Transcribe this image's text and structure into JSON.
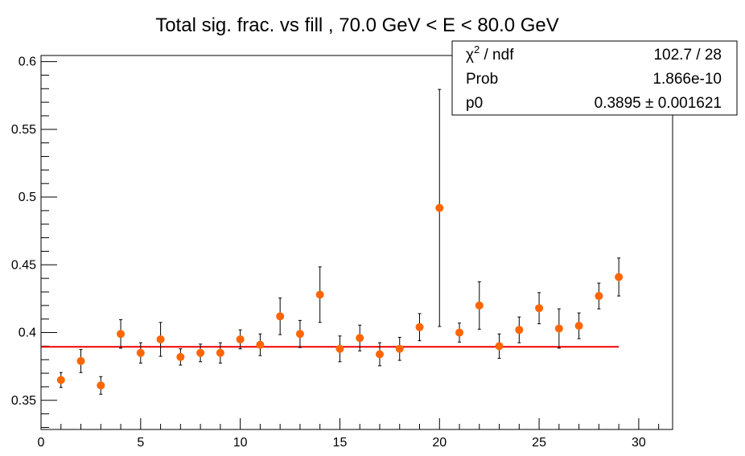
{
  "chart_data": {
    "type": "scatter",
    "title": "Total sig. frac. vs fill , 70.0 GeV < E < 80.0 GeV",
    "xlabel": "",
    "ylabel": "",
    "xlim": [
      0,
      31.7
    ],
    "ylim": [
      0.3285,
      0.6045
    ],
    "x_ticks": [
      0,
      5,
      10,
      15,
      20,
      25,
      30
    ],
    "x_tick_labels": [
      "0",
      "5",
      "10",
      "15",
      "20",
      "25",
      "30"
    ],
    "y_ticks": [
      0.35,
      0.4,
      0.45,
      0.5,
      0.55,
      0.6
    ],
    "y_tick_labels": [
      "0.35",
      "0.4",
      "0.45",
      "0.5",
      "0.55",
      "0.6"
    ],
    "grid": false,
    "marker_color": "#ff6600",
    "fit_color": "#ee0000",
    "series": [
      {
        "x": [
          1,
          2,
          3,
          4,
          5,
          6,
          7,
          8,
          9,
          10,
          11,
          12,
          13,
          14,
          15,
          16,
          17,
          18,
          19,
          20,
          21,
          22,
          23,
          24,
          25,
          26,
          27,
          28,
          29
        ],
        "y": [
          0.365,
          0.379,
          0.361,
          0.399,
          0.385,
          0.395,
          0.382,
          0.385,
          0.385,
          0.395,
          0.391,
          0.412,
          0.399,
          0.428,
          0.388,
          0.396,
          0.384,
          0.388,
          0.404,
          0.492,
          0.4,
          0.42,
          0.39,
          0.402,
          0.418,
          0.403,
          0.405,
          0.427,
          0.441
        ],
        "err_low": [
          0.0055,
          0.0085,
          0.0065,
          0.0105,
          0.0075,
          0.0125,
          0.006,
          0.0065,
          0.0075,
          0.007,
          0.008,
          0.0135,
          0.01,
          0.0205,
          0.0095,
          0.0095,
          0.0085,
          0.0085,
          0.01,
          0.0875,
          0.007,
          0.0175,
          0.009,
          0.0095,
          0.0115,
          0.0145,
          0.0095,
          0.0095,
          0.014
        ],
        "err_high": [
          0.0055,
          0.0085,
          0.0065,
          0.0105,
          0.0075,
          0.0125,
          0.006,
          0.0065,
          0.0075,
          0.007,
          0.008,
          0.0135,
          0.01,
          0.0205,
          0.0095,
          0.0095,
          0.0085,
          0.0085,
          0.01,
          0.0875,
          0.007,
          0.0175,
          0.009,
          0.0095,
          0.0115,
          0.0145,
          0.0095,
          0.0095,
          0.014
        ]
      }
    ],
    "fit": {
      "value": 0.3895,
      "x_range": [
        0,
        29
      ]
    },
    "stats_box": {
      "chi2_symbol": "χ",
      "chi2_sup": "2",
      "chi2_label": " / ndf",
      "chi2_value": "102.7 / 28",
      "prob_label": "Prob",
      "prob_value": "1.866e-10",
      "p0_label": "p0",
      "p0_value": "0.3895 ± 0.001621"
    }
  }
}
